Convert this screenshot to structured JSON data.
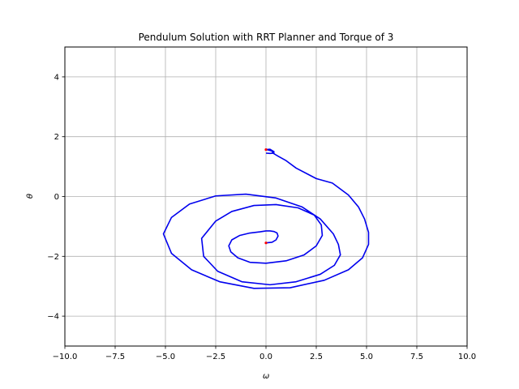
{
  "chart_data": {
    "type": "line",
    "title": "Pendulum Solution with RRT Planner and Torque of 3",
    "xlabel": "ω",
    "ylabel": "θ",
    "xlim": [
      -10,
      10
    ],
    "ylim": [
      -5,
      5
    ],
    "xticks": [
      -10,
      -7.5,
      -5,
      -2.5,
      0,
      2.5,
      5,
      7.5,
      10
    ],
    "xtick_labels": [
      "−10.0",
      "−7.5",
      "−5.0",
      "−2.5",
      "0.0",
      "2.5",
      "5.0",
      "7.5",
      "10.0"
    ],
    "yticks": [
      -4,
      -2,
      0,
      2,
      4
    ],
    "ytick_labels": [
      "−4",
      "−2",
      "0",
      "2",
      "4"
    ],
    "grid": true,
    "series": [
      {
        "color": "#0000ee",
        "x": [
          0.0,
          0.3,
          0.5,
          0.6,
          0.55,
          0.4,
          0.2,
          0.0,
          -0.3,
          -0.8,
          -1.3,
          -1.7,
          -1.85,
          -1.75,
          -1.4,
          -0.8,
          0.0,
          1.0,
          1.9,
          2.5,
          2.8,
          2.75,
          2.4,
          1.6,
          0.5,
          -0.6,
          -1.7,
          -2.5,
          -3.2,
          -3.1,
          -2.4,
          -1.2,
          0.2,
          1.5,
          2.7,
          3.4,
          3.7,
          3.6,
          3.35,
          2.7,
          1.8,
          0.5,
          -1.0,
          -2.5,
          -3.8,
          -4.7,
          -5.1,
          -4.7,
          -3.7,
          -2.3,
          -0.6,
          1.2,
          2.9,
          4.1,
          4.8,
          5.1,
          5.1,
          4.9,
          4.6,
          4.1,
          3.3,
          2.5,
          1.5,
          1.0,
          0.6,
          0.35,
          0.3,
          0.4,
          0.2,
          0.0,
          0.1,
          0.3,
          0.4,
          0.2,
          0.0
        ],
        "y": [
          -1.55,
          -1.53,
          -1.45,
          -1.32,
          -1.22,
          -1.17,
          -1.15,
          -1.15,
          -1.18,
          -1.22,
          -1.3,
          -1.45,
          -1.65,
          -1.85,
          -2.05,
          -2.2,
          -2.23,
          -2.15,
          -1.95,
          -1.65,
          -1.3,
          -0.95,
          -0.62,
          -0.38,
          -0.27,
          -0.3,
          -0.5,
          -0.82,
          -1.4,
          -2.0,
          -2.5,
          -2.85,
          -2.95,
          -2.85,
          -2.6,
          -2.3,
          -1.95,
          -1.6,
          -1.25,
          -0.75,
          -0.35,
          -0.05,
          0.08,
          0.02,
          -0.25,
          -0.7,
          -1.25,
          -1.9,
          -2.45,
          -2.85,
          -3.07,
          -3.05,
          -2.8,
          -2.45,
          -2.05,
          -1.6,
          -1.2,
          -0.75,
          -0.35,
          0.05,
          0.45,
          0.6,
          0.95,
          1.2,
          1.35,
          1.45,
          1.52,
          1.5,
          1.58,
          1.57,
          1.56,
          1.52,
          1.45,
          1.44,
          1.45
        ]
      }
    ],
    "start_point": {
      "x": 0.0,
      "y": -1.55,
      "color": "#ff0000"
    },
    "end_point": {
      "x": 0.0,
      "y": 1.57,
      "color": "#ff0000"
    }
  }
}
